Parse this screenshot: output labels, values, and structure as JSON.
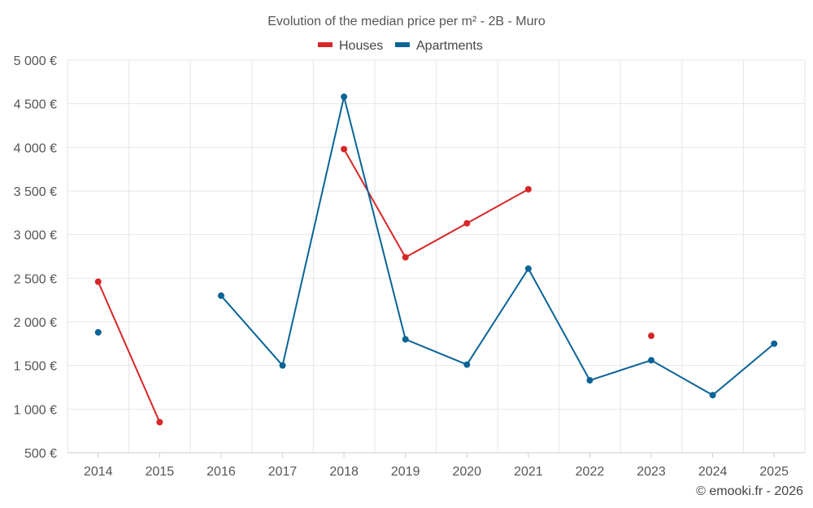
{
  "chart_data": {
    "type": "line",
    "title": "Evolution of the median price per m² - 2B - Muro",
    "categories": [
      "2014",
      "2015",
      "2016",
      "2017",
      "2018",
      "2019",
      "2020",
      "2021",
      "2022",
      "2023",
      "2024",
      "2025"
    ],
    "series": [
      {
        "name": "Houses",
        "color": "#d62728",
        "values": [
          2460,
          850,
          null,
          null,
          3980,
          2740,
          3130,
          3520,
          null,
          1840,
          null,
          null
        ]
      },
      {
        "name": "Apartments",
        "color": "#0a6496",
        "values": [
          1880,
          null,
          2300,
          1500,
          4580,
          1800,
          1510,
          2610,
          1330,
          1560,
          1160,
          1750
        ]
      }
    ],
    "ylim": [
      500,
      5000
    ],
    "yticks": [
      500,
      1000,
      1500,
      2000,
      2500,
      3000,
      3500,
      4000,
      4500,
      5000
    ],
    "ytick_labels": [
      "500 €",
      "1 000 €",
      "1 500 €",
      "2 000 €",
      "2 500 €",
      "3 000 €",
      "3 500 €",
      "4 000 €",
      "4 500 €",
      "5 000 €"
    ],
    "xlabel": "",
    "ylabel": "",
    "legend": "top-center",
    "grid": true,
    "credit": "© emooki.fr - 2026"
  }
}
